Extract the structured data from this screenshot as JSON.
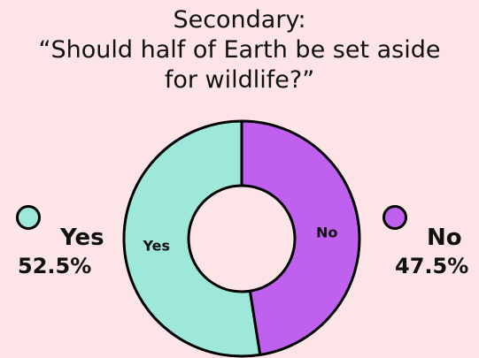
{
  "chart_data": {
    "type": "pie",
    "donut": true,
    "title_lines": [
      "Secondary:",
      "“Should half of Earth be set aside",
      "for wildlife?”"
    ],
    "categories": [
      "Yes",
      "No"
    ],
    "values": [
      52.5,
      47.5
    ],
    "value_labels": [
      "52.5%",
      "47.5%"
    ],
    "colors": [
      "#9de8d8",
      "#c060ee"
    ],
    "legend": "sides"
  }
}
